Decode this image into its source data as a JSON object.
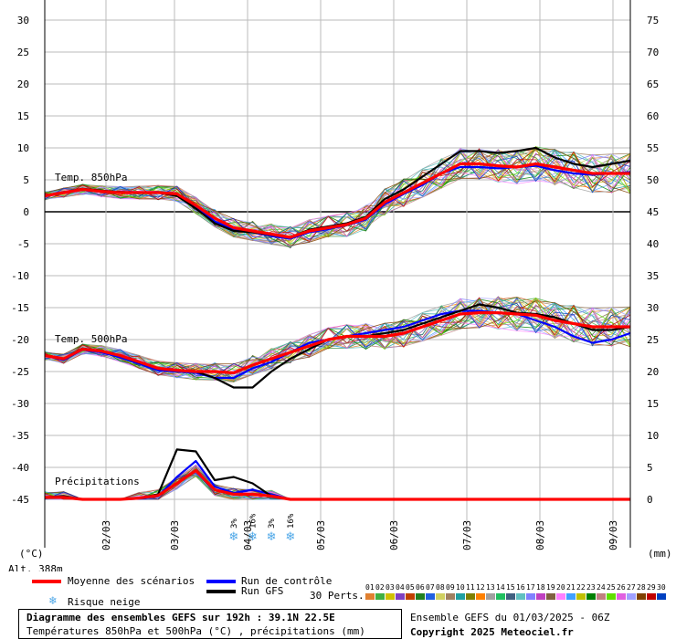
{
  "chart_data": {
    "type": "line",
    "title": "Diagramme des ensembles GEFS sur 192h : 39.1N 22.5E",
    "subtitle": "Températures 850hPa et 500hPa (°C) , précipitations (mm)",
    "x_tick_labels": [
      "02/03",
      "03/03",
      "04/03",
      "05/03",
      "06/03",
      "07/03",
      "08/03",
      "09/03"
    ],
    "left_axis": {
      "unit": "(°C)",
      "ticks": [
        30,
        25,
        20,
        15,
        10,
        5,
        0,
        -5,
        -10,
        -15,
        -20,
        -25,
        -30,
        -35,
        -40,
        -45
      ],
      "range": [
        -45,
        30
      ]
    },
    "right_axis": {
      "unit": "(mm)",
      "ticks": [
        75,
        70,
        65,
        60,
        55,
        50,
        45,
        40,
        35,
        30,
        25,
        20,
        15,
        10,
        5,
        0
      ],
      "range": [
        0,
        75
      ]
    },
    "altitude_label": "Alt. 388m",
    "panel_labels": {
      "t850": "Temp. 850hPa",
      "t500": "Temp. 500hPa",
      "precip": "Précipitations"
    },
    "x_steps": 32,
    "series": [
      {
        "name": "Moyenne des scénarios",
        "panel": "t850",
        "color": "#ff0000",
        "values": [
          2.5,
          3.0,
          3.5,
          3.2,
          3.0,
          3.0,
          3.0,
          2.8,
          1.0,
          -1.0,
          -2.5,
          -3.0,
          -3.5,
          -4.0,
          -3.0,
          -2.5,
          -2.0,
          -1.0,
          1.5,
          3.0,
          4.5,
          6.0,
          7.5,
          7.5,
          7.2,
          7.0,
          7.5,
          7.0,
          6.5,
          6.0,
          6.0,
          6.0
        ]
      },
      {
        "name": "Run de contrôle",
        "panel": "t850",
        "color": "#0000ff",
        "values": [
          2.4,
          3.1,
          3.4,
          3.2,
          3.1,
          3.0,
          3.1,
          2.6,
          0.8,
          -1.5,
          -2.8,
          -3.2,
          -3.8,
          -4.2,
          -3.2,
          -2.7,
          -2.1,
          -1.2,
          1.2,
          2.8,
          4.2,
          6.0,
          7.0,
          7.0,
          6.8,
          7.0,
          7.2,
          6.5,
          6.0,
          5.8,
          6.0,
          6.2
        ]
      },
      {
        "name": "Run GFS",
        "panel": "t850",
        "color": "#000000",
        "values": [
          2.6,
          3.0,
          3.6,
          3.3,
          3.1,
          3.0,
          3.0,
          2.5,
          0.5,
          -1.8,
          -3.0,
          -3.2,
          -3.6,
          -4.0,
          -2.8,
          -2.3,
          -1.8,
          -0.8,
          2.0,
          3.5,
          5.5,
          7.5,
          9.5,
          9.5,
          9.2,
          9.5,
          10.0,
          8.5,
          7.5,
          7.0,
          7.5,
          8.0
        ]
      },
      {
        "name": "Moyenne des scénarios",
        "panel": "t500",
        "color": "#ff0000",
        "values": [
          -22.5,
          -23.0,
          -21.5,
          -21.8,
          -22.5,
          -23.5,
          -24.5,
          -24.8,
          -25.0,
          -25.0,
          -25.2,
          -24.0,
          -23.0,
          -22.0,
          -21.0,
          -20.0,
          -19.5,
          -19.5,
          -19.5,
          -19.0,
          -18.0,
          -17.0,
          -16.0,
          -15.8,
          -15.8,
          -16.0,
          -16.2,
          -17.0,
          -17.5,
          -18.0,
          -18.0,
          -18.0
        ]
      },
      {
        "name": "Run de contrôle",
        "panel": "t500",
        "color": "#0000ff",
        "values": [
          -22.5,
          -23.2,
          -21.6,
          -22.0,
          -22.8,
          -23.8,
          -24.8,
          -25.0,
          -25.2,
          -26.0,
          -26.0,
          -24.5,
          -23.5,
          -22.0,
          -20.5,
          -20.0,
          -19.5,
          -19.0,
          -18.5,
          -18.0,
          -17.0,
          -16.0,
          -15.5,
          -15.5,
          -15.8,
          -16.0,
          -17.0,
          -18.0,
          -19.5,
          -20.5,
          -20.0,
          -19.0
        ]
      },
      {
        "name": "Run GFS",
        "panel": "t500",
        "color": "#000000",
        "values": [
          -22.4,
          -23.0,
          -21.4,
          -21.8,
          -22.5,
          -23.6,
          -24.5,
          -24.8,
          -25.0,
          -26.0,
          -27.5,
          -27.5,
          -25.0,
          -23.0,
          -21.5,
          -20.0,
          -19.5,
          -19.5,
          -19.0,
          -18.5,
          -17.5,
          -16.5,
          -15.5,
          -14.5,
          -15.0,
          -15.8,
          -16.0,
          -16.5,
          -17.5,
          -18.5,
          -18.5,
          -18.0
        ]
      },
      {
        "name": "Moyenne des scénarios",
        "panel": "precip",
        "color": "#ff0000",
        "values": [
          0.3,
          0.3,
          0,
          0,
          0,
          0.2,
          0.6,
          2.5,
          4.5,
          1.5,
          0.8,
          0.8,
          0.5,
          0,
          0,
          0,
          0,
          0,
          0,
          0,
          0,
          0,
          0,
          0,
          0,
          0,
          0,
          0,
          0,
          0,
          0,
          0
        ]
      },
      {
        "name": "Run de contrôle",
        "panel": "precip",
        "color": "#0000ff",
        "values": [
          0.2,
          0.4,
          0,
          0,
          0,
          0.1,
          0.5,
          3.5,
          6.0,
          2.0,
          1.0,
          1.5,
          0.8,
          0,
          0,
          0,
          0,
          0,
          0,
          0,
          0,
          0,
          0,
          0,
          0,
          0,
          0,
          0,
          0,
          0,
          0,
          0
        ]
      },
      {
        "name": "Run GFS",
        "panel": "precip",
        "color": "#000000",
        "values": [
          0.3,
          0.5,
          0,
          0,
          0,
          0.2,
          0.8,
          7.8,
          7.5,
          3.0,
          3.5,
          2.5,
          0.5,
          0,
          0,
          0,
          0,
          0,
          0,
          0,
          0,
          0,
          0,
          0,
          0,
          0,
          0,
          0,
          0,
          0,
          0,
          0
        ]
      }
    ],
    "snow_risk": [
      {
        "step": 10,
        "label": "3%"
      },
      {
        "step": 11,
        "label": "16%"
      },
      {
        "step": 12,
        "label": "3%"
      },
      {
        "step": 13,
        "label": "16%"
      }
    ],
    "grid": true,
    "perturbation_count": 30
  },
  "legend": {
    "mean_label": "Moyenne des scénarios",
    "control_label": "Run de contrôle",
    "gfs_label": "Run GFS",
    "snow_label": "Risque neige",
    "perts_label": "30 Perts.",
    "pert_numbers": [
      "01",
      "02",
      "03",
      "04",
      "05",
      "06",
      "07",
      "08",
      "09",
      "10",
      "11",
      "12",
      "13",
      "14",
      "15",
      "16",
      "17",
      "18",
      "19",
      "20",
      "21",
      "22",
      "23",
      "24",
      "25",
      "26",
      "27",
      "28",
      "29",
      "30"
    ],
    "pert_colors": [
      "#e08030",
      "#40b040",
      "#d0c000",
      "#8040c0",
      "#c04000",
      "#208020",
      "#2060e0",
      "#d0d060",
      "#a08060",
      "#20a0a0",
      "#808000",
      "#ff8000",
      "#a0a0a0",
      "#20c060",
      "#406080",
      "#60c0c0",
      "#8080ff",
      "#c040c0",
      "#806040",
      "#ff80ff",
      "#40a0ff",
      "#c0c000",
      "#008000",
      "#c08080",
      "#60e000",
      "#e060e0",
      "#a0a0ff",
      "#804000",
      "#c00000",
      "#0040c0"
    ],
    "mean_color": "#ff0000",
    "control_color": "#0000ff",
    "gfs_color": "#000000"
  },
  "footer": {
    "ensemble_info": "Ensemble GEFS du 01/03/2025 - 06Z",
    "copyright": "Copyright 2025 Meteociel.fr"
  }
}
